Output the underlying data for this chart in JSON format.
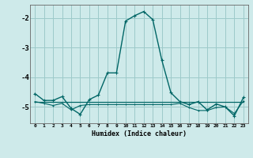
{
  "xlabel": "Humidex (Indice chaleur)",
  "background_color": "#ceeaea",
  "grid_color": "#9dcaca",
  "line_color": "#006666",
  "x_values": [
    0,
    1,
    2,
    3,
    4,
    5,
    6,
    7,
    8,
    9,
    10,
    11,
    12,
    13,
    14,
    15,
    16,
    17,
    18,
    19,
    20,
    21,
    22,
    23
  ],
  "series1": [
    -4.55,
    -4.78,
    -4.78,
    -4.65,
    -5.05,
    -5.25,
    -4.75,
    -4.6,
    -3.85,
    -3.85,
    -2.1,
    -1.92,
    -1.78,
    -2.05,
    -3.42,
    -4.52,
    -4.82,
    -4.92,
    -4.82,
    -5.1,
    -4.9,
    -5.0,
    -5.3,
    -4.68
  ],
  "series2": [
    -4.82,
    -4.82,
    -4.82,
    -4.82,
    -4.82,
    -4.82,
    -4.82,
    -4.82,
    -4.82,
    -4.82,
    -4.82,
    -4.82,
    -4.82,
    -4.82,
    -4.82,
    -4.82,
    -4.82,
    -4.82,
    -4.82,
    -4.82,
    -4.82,
    -4.82,
    -4.82,
    -4.82
  ],
  "series3": [
    -4.82,
    -4.82,
    -4.82,
    -4.82,
    -4.82,
    -4.82,
    -4.82,
    -4.82,
    -4.82,
    -4.82,
    -4.82,
    -4.82,
    -4.82,
    -4.82,
    -4.82,
    -4.82,
    -4.82,
    -4.82,
    -4.82,
    -4.82,
    -4.82,
    -4.82,
    -4.82,
    -4.82
  ],
  "series4": [
    -4.82,
    -4.88,
    -4.95,
    -4.88,
    -5.1,
    -4.95,
    -4.92,
    -4.92,
    -4.92,
    -4.92,
    -4.92,
    -4.92,
    -4.92,
    -4.92,
    -4.92,
    -4.92,
    -4.88,
    -5.02,
    -5.12,
    -5.12,
    -5.02,
    -5.0,
    -5.22,
    -4.8
  ],
  "ylim": [
    -5.55,
    -1.55
  ],
  "yticks": [
    -5,
    -4,
    -3,
    -2
  ],
  "xlim": [
    -0.5,
    23.5
  ],
  "xticks": [
    0,
    1,
    2,
    3,
    4,
    5,
    6,
    7,
    8,
    9,
    10,
    11,
    12,
    13,
    14,
    15,
    16,
    17,
    18,
    19,
    20,
    21,
    22,
    23
  ]
}
